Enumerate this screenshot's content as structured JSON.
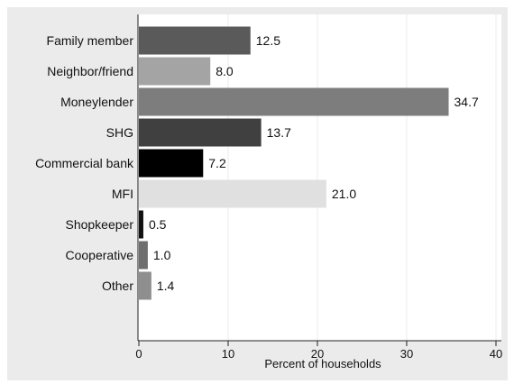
{
  "chart_data": {
    "type": "bar",
    "orientation": "horizontal",
    "title": "",
    "xlabel": "Percent of households",
    "ylabel": "",
    "xlim": [
      0,
      40
    ],
    "xticks": [
      0,
      10,
      20,
      30,
      40
    ],
    "grid": true,
    "legend": "none",
    "categories": [
      "Family member",
      "Neighbor/friend",
      "Moneylender",
      "SHG",
      "Commercial bank",
      "MFI",
      "Shopkeeper",
      "Cooperative",
      "Other"
    ],
    "values": [
      12.5,
      8.0,
      34.7,
      13.7,
      7.2,
      21.0,
      0.5,
      1.0,
      1.4
    ],
    "value_labels": [
      "12.5",
      "8.0",
      "34.7",
      "13.7",
      "7.2",
      "21.0",
      "0.5",
      "1.0",
      "1.4"
    ],
    "bar_colors": [
      "#5a5a5a",
      "#a4a4a4",
      "#7d7d7d",
      "#404040",
      "#000000",
      "#e0e0e0",
      "#111111",
      "#6e6e6e",
      "#8e8e8e"
    ],
    "background_color": "#ebebeb",
    "plot_background_color": "#ffffff",
    "grid_color": "#ebebeb"
  }
}
